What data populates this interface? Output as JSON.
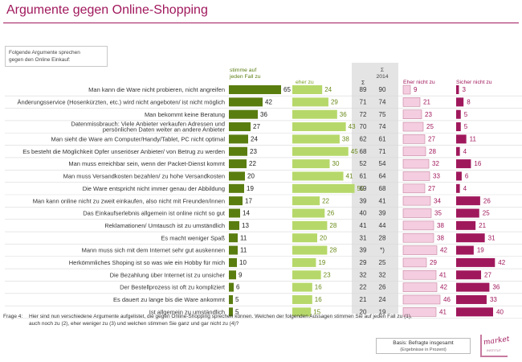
{
  "title": "Argumente gegen Online-Shopping",
  "intro": "Folgende Argumente sprechen\ngegen den Online Einkauf:",
  "colors": {
    "title": "#a0185c",
    "green_dark": "#5a7d10",
    "green_light": "#b6d86a",
    "pink_light": "#f4cde0",
    "pink_dark": "#a0185c",
    "sum_panel": "#e4e4e4"
  },
  "chart_data": {
    "type": "diverging-bar",
    "title": "Argumente gegen Online-Shopping",
    "column_headers": {
      "stimme": "stimme auf\njeden Fall zu",
      "eher": "eher zu",
      "sum_now": "Σ",
      "sum_2014": "Σ\n2014",
      "eher_nicht": "Eher nicht zu",
      "sicher_nicht": "Sicher nicht zu"
    },
    "rows": [
      {
        "label": "Man kann die Ware nicht probieren, nicht angreifen",
        "stimme": 65,
        "eher": 24,
        "sum": "89",
        "sum2014": "90",
        "eher_nicht": 9,
        "sicher_nicht": 3
      },
      {
        "label": "Änderungsservice (Hosenkürzten, etc.) wird nicht angeboten/ ist nicht möglich",
        "stimme": 42,
        "eher": 29,
        "sum": "71",
        "sum2014": "74",
        "eher_nicht": 21,
        "sicher_nicht": 8
      },
      {
        "label": "Man bekommt keine Beratung",
        "stimme": 36,
        "eher": 36,
        "sum": "72",
        "sum2014": "75",
        "eher_nicht": 23,
        "sicher_nicht": 5
      },
      {
        "label": "Datenmissbrauch: Viele Anbieter verkaufen Adressen und persönlichen Daten weiter an andere Anbieter",
        "stimme": 27,
        "eher": 43,
        "sum": "70",
        "sum2014": "74",
        "eher_nicht": 25,
        "sicher_nicht": 5
      },
      {
        "label": "Man sieht die Ware am Computer/Handy/Tablet, PC nicht optimal",
        "stimme": 24,
        "eher": 38,
        "sum": "62",
        "sum2014": "61",
        "eher_nicht": 27,
        "sicher_nicht": 11
      },
      {
        "label": "Es besteht die Möglichkeit Opfer unseriöser Anbieter/ von Betrug zu werden",
        "stimme": 23,
        "eher": 45,
        "sum": "68",
        "sum2014": "71",
        "eher_nicht": 28,
        "sicher_nicht": 4
      },
      {
        "label": "Man muss erreichbar sein, wenn der Packet-Dienst kommt",
        "stimme": 22,
        "eher": 30,
        "sum": "52",
        "sum2014": "54",
        "eher_nicht": 32,
        "sicher_nicht": 16
      },
      {
        "label": "Man muss Versandkosten bezahlen/ zu hohe Versandkosten",
        "stimme": 20,
        "eher": 41,
        "sum": "61",
        "sum2014": "64",
        "eher_nicht": 33,
        "sicher_nicht": 6
      },
      {
        "label": "Die Ware entspricht nicht immer genau der Abbildung",
        "stimme": 19,
        "eher": 50,
        "sum": "69",
        "sum2014": "68",
        "eher_nicht": 27,
        "sicher_nicht": 4
      },
      {
        "label": "Man kann online nicht zu zweit einkaufen, also nicht mit Freunden/innen",
        "stimme": 17,
        "eher": 22,
        "sum": "39",
        "sum2014": "41",
        "eher_nicht": 34,
        "sicher_nicht": 26
      },
      {
        "label": "Das Einkaufserlebnis  allgemein ist online nicht so gut",
        "stimme": 14,
        "eher": 26,
        "sum": "40",
        "sum2014": "39",
        "eher_nicht": 35,
        "sicher_nicht": 25
      },
      {
        "label": "Reklamationen/ Umtausch ist zu umständlich",
        "stimme": 13,
        "eher": 28,
        "sum": "41",
        "sum2014": "44",
        "eher_nicht": 38,
        "sicher_nicht": 21
      },
      {
        "label": "Es macht weniger Spaß",
        "stimme": 11,
        "eher": 20,
        "sum": "31",
        "sum2014": "28",
        "eher_nicht": 38,
        "sicher_nicht": 31
      },
      {
        "label": "Mann muss sich mit dem Internet sehr gut auskennen",
        "stimme": 11,
        "eher": 28,
        "sum": "39",
        "sum2014": "*)",
        "eher_nicht": 42,
        "sicher_nicht": 19
      },
      {
        "label": "Herkömmliches Shoping  ist so was wie ein Hobby für mich",
        "stimme": 10,
        "eher": 19,
        "sum": "29",
        "sum2014": "25",
        "eher_nicht": 29,
        "sicher_nicht": 42
      },
      {
        "label": "Die Bezahlung über Internet ist zu unsicher",
        "stimme": 9,
        "eher": 23,
        "sum": "32",
        "sum2014": "32",
        "eher_nicht": 41,
        "sicher_nicht": 27
      },
      {
        "label": "Der Bestellprozess ist oft zu kompliziert",
        "stimme": 6,
        "eher": 16,
        "sum": "22",
        "sum2014": "26",
        "eher_nicht": 42,
        "sicher_nicht": 36
      },
      {
        "label": "Es dauert zu lange bis die Ware ankommt",
        "stimme": 5,
        "eher": 16,
        "sum": "21",
        "sum2014": "24",
        "eher_nicht": 46,
        "sicher_nicht": 33
      },
      {
        "label": "Ist allgemein zu umständlich",
        "stimme": 5,
        "eher": 15,
        "sum": "20",
        "sum2014": "19",
        "eher_nicht": 41,
        "sicher_nicht": 40
      }
    ]
  },
  "footnote": {
    "label": "Frage 4:",
    "line1": "Hier sind nun verschiedene Argumente aufgelistet, die gegen Online-Shopping sprechen können. Welchen der folgenden Aussagen stimmen Sie auf jeden Fall zu (1),",
    "line2": "auch noch zu (2), eher weniger zu (3) und welchen stimmen Sie ganz und gar nicht zu (4)?"
  },
  "source": {
    "line1": "Basis: Befragte insgesamt",
    "line2": "(Ergebnisse in Prozent)"
  },
  "logo": {
    "text": "market",
    "sub": "INSTITUT"
  }
}
